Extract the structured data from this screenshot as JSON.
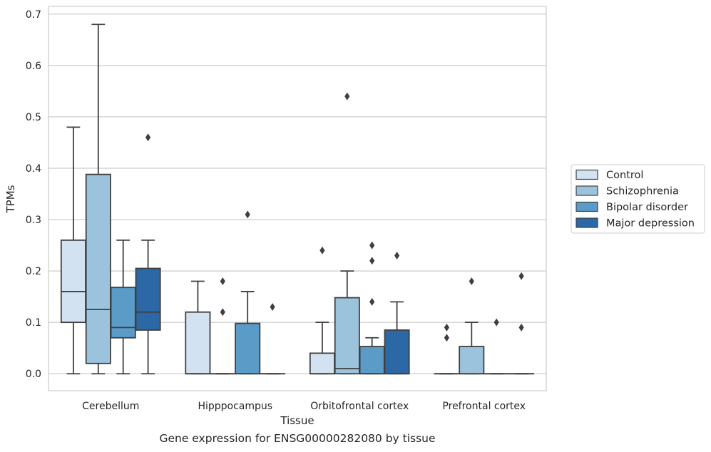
{
  "caption": "Gene expression for ENSG00000282080 by tissue",
  "chart_data": {
    "type": "box",
    "title": "",
    "xlabel": "Tissue",
    "ylabel": "TPMs",
    "ylim": [
      -0.033,
      0.715
    ],
    "yticks": [
      0.0,
      0.1,
      0.2,
      0.3,
      0.4,
      0.5,
      0.6,
      0.7
    ],
    "ytick_labels": [
      "0.0",
      "0.1",
      "0.2",
      "0.3",
      "0.4",
      "0.5",
      "0.6",
      "0.7"
    ],
    "grid": true,
    "legend_placement": "center-right outside",
    "categories": [
      "Cerebellum",
      "Hipppocampus",
      "Orbitofrontal cortex",
      "Prefrontal cortex"
    ],
    "series": [
      {
        "name": "Control",
        "color": "#d2e2f0",
        "boxes": [
          {
            "category": "Cerebellum",
            "whislo": 0.0,
            "q1": 0.1,
            "med": 0.16,
            "q3": 0.26,
            "whishi": 0.48,
            "fliers": []
          },
          {
            "category": "Hipppocampus",
            "whislo": 0.0,
            "q1": 0.0,
            "med": 0.0,
            "q3": 0.12,
            "whishi": 0.18,
            "fliers": []
          },
          {
            "category": "Orbitofrontal cortex",
            "whislo": 0.0,
            "q1": 0.0,
            "med": 0.0,
            "q3": 0.04,
            "whishi": 0.1,
            "fliers": [
              0.24
            ]
          },
          {
            "category": "Prefrontal cortex",
            "whislo": 0.0,
            "q1": 0.0,
            "med": 0.0,
            "q3": 0.0,
            "whishi": 0.0,
            "fliers": [
              0.09,
              0.07
            ]
          }
        ]
      },
      {
        "name": "Schizophrenia",
        "color": "#9cc3dc",
        "boxes": [
          {
            "category": "Cerebellum",
            "whislo": 0.0,
            "q1": 0.02,
            "med": 0.125,
            "q3": 0.388,
            "whishi": 0.68,
            "fliers": []
          },
          {
            "category": "Hipppocampus",
            "whislo": 0.0,
            "q1": 0.0,
            "med": 0.0,
            "q3": 0.0,
            "whishi": 0.0,
            "fliers": [
              0.18,
              0.12
            ]
          },
          {
            "category": "Orbitofrontal cortex",
            "whislo": 0.0,
            "q1": 0.0,
            "med": 0.01,
            "q3": 0.148,
            "whishi": 0.2,
            "fliers": [
              0.54
            ]
          },
          {
            "category": "Prefrontal cortex",
            "whislo": 0.0,
            "q1": 0.0,
            "med": 0.0,
            "q3": 0.053,
            "whishi": 0.1,
            "fliers": [
              0.18
            ]
          }
        ]
      },
      {
        "name": "Bipolar disorder",
        "color": "#5a9bc8",
        "boxes": [
          {
            "category": "Cerebellum",
            "whislo": 0.0,
            "q1": 0.07,
            "med": 0.09,
            "q3": 0.168,
            "whishi": 0.26,
            "fliers": []
          },
          {
            "category": "Hipppocampus",
            "whislo": 0.0,
            "q1": 0.0,
            "med": 0.0,
            "q3": 0.098,
            "whishi": 0.16,
            "fliers": [
              0.31
            ]
          },
          {
            "category": "Orbitofrontal cortex",
            "whislo": 0.0,
            "q1": 0.0,
            "med": 0.0,
            "q3": 0.053,
            "whishi": 0.07,
            "fliers": [
              0.25,
              0.22,
              0.14
            ]
          },
          {
            "category": "Prefrontal cortex",
            "whislo": 0.0,
            "q1": 0.0,
            "med": 0.0,
            "q3": 0.0,
            "whishi": 0.0,
            "fliers": [
              0.1
            ]
          }
        ]
      },
      {
        "name": "Major depression",
        "color": "#2c68a5",
        "boxes": [
          {
            "category": "Cerebellum",
            "whislo": 0.0,
            "q1": 0.085,
            "med": 0.12,
            "q3": 0.205,
            "whishi": 0.26,
            "fliers": [
              0.46
            ]
          },
          {
            "category": "Hipppocampus",
            "whislo": 0.0,
            "q1": 0.0,
            "med": 0.0,
            "q3": 0.0,
            "whishi": 0.0,
            "fliers": [
              0.13
            ]
          },
          {
            "category": "Orbitofrontal cortex",
            "whislo": 0.0,
            "q1": 0.0,
            "med": 0.0,
            "q3": 0.085,
            "whishi": 0.14,
            "fliers": [
              0.23
            ]
          },
          {
            "category": "Prefrontal cortex",
            "whislo": 0.0,
            "q1": 0.0,
            "med": 0.0,
            "q3": 0.0,
            "whishi": 0.0,
            "fliers": [
              0.19,
              0.09
            ]
          }
        ]
      }
    ]
  }
}
